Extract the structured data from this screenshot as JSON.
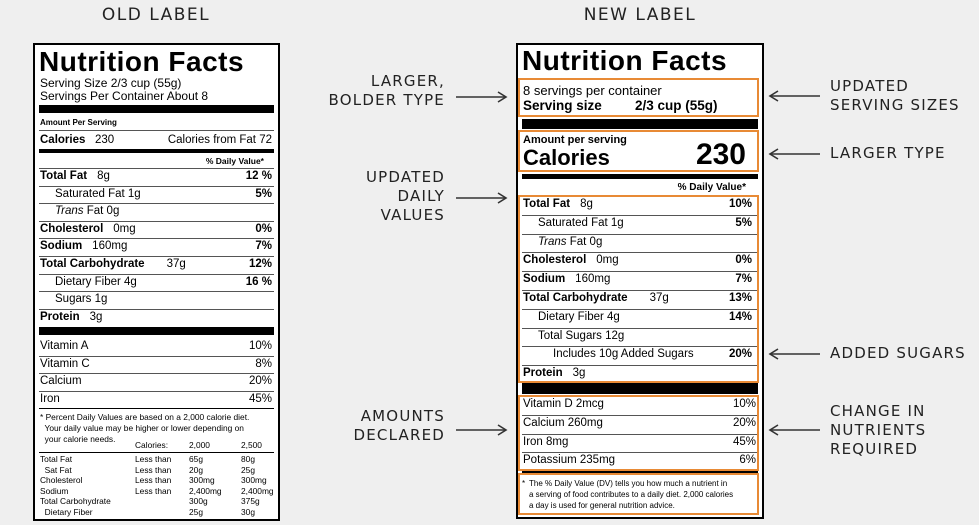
{
  "headings": {
    "old": "OLD LABEL",
    "new": "NEW LABEL"
  },
  "old_label": {
    "title": "Nutrition Facts",
    "serving_size": "Serving Size 2/3 cup (55g)",
    "servings_per_container": "Servings Per Container About 8",
    "amount_per_serving": "Amount Per Serving",
    "calories_label": "Calories",
    "calories_value": "230",
    "calories_from_fat": "Calories from Fat 72",
    "dv_header": "% Daily Value*",
    "nutrients": [
      {
        "label": "Total Fat",
        "amount": "8g",
        "dv": "12 %",
        "bold": true,
        "indent": 0
      },
      {
        "label": "Saturated Fat 1g",
        "amount": "",
        "dv": "5%",
        "bold": false,
        "indent": 1
      },
      {
        "label": "Trans",
        "label_suffix": " Fat 0g",
        "amount": "",
        "dv": "",
        "bold": false,
        "indent": 1,
        "italic": true
      },
      {
        "label": "Cholesterol",
        "amount": "0mg",
        "dv": "0%",
        "bold": true,
        "indent": 0
      },
      {
        "label": "Sodium",
        "amount": "160mg",
        "dv": "7%",
        "bold": true,
        "indent": 0
      },
      {
        "label": "Total Carbohydrate",
        "amount": "37g",
        "dv": "12%",
        "bold": true,
        "indent": 0
      },
      {
        "label": "Dietary Fiber 4g",
        "amount": "",
        "dv": "16 %",
        "bold": false,
        "indent": 1
      },
      {
        "label": "Sugars 1g",
        "amount": "",
        "dv": "",
        "bold": false,
        "indent": 1
      },
      {
        "label": "Protein",
        "amount": "3g",
        "dv": "",
        "bold": true,
        "indent": 0
      }
    ],
    "vitamins": [
      {
        "label": "Vitamin A",
        "dv": "10%"
      },
      {
        "label": "Vitamin C",
        "dv": "8%"
      },
      {
        "label": "Calcium",
        "dv": "20%"
      },
      {
        "label": "Iron",
        "dv": "45%"
      }
    ],
    "footnote": [
      "* Percent Daily Values are based on a 2,000 calorie diet.",
      "  Your daily value may be higher or lower depending on",
      "  your calorie needs."
    ],
    "table_header": [
      "Calories:",
      "2,000",
      "2,500"
    ],
    "table_rows": [
      [
        "Total Fat",
        "Less than",
        "65g",
        "80g"
      ],
      [
        "  Sat Fat",
        "Less than",
        "20g",
        "25g"
      ],
      [
        "Cholesterol",
        "Less than",
        "300mg",
        "300mg"
      ],
      [
        "Sodium",
        "Less than",
        "2,400mg",
        "2,400mg"
      ],
      [
        "Total Carbohydrate",
        "",
        "300g",
        "375g"
      ],
      [
        "  Dietary Fiber",
        "",
        "25g",
        "30g"
      ]
    ]
  },
  "new_label": {
    "title": "Nutrition Facts",
    "servings_per_container": "8 servings per container",
    "serving_size_label": "Serving size",
    "serving_size_value": "2/3 cup (55g)",
    "amount_per_serving": "Amount per serving",
    "calories_label": "Calories",
    "calories_value": "230",
    "dv_header": "% Daily Value*",
    "nutrients": [
      {
        "label": "Total Fat",
        "amount": "8g",
        "dv": "10%",
        "bold": true,
        "indent": 0
      },
      {
        "label": "Saturated Fat 1g",
        "amount": "",
        "dv": "5%",
        "bold": false,
        "indent": 1
      },
      {
        "label": "Trans",
        "label_suffix": " Fat 0g",
        "amount": "",
        "dv": "",
        "bold": false,
        "indent": 1,
        "italic": true
      },
      {
        "label": "Cholesterol",
        "amount": "0mg",
        "dv": "0%",
        "bold": true,
        "indent": 0
      },
      {
        "label": "Sodium",
        "amount": "160mg",
        "dv": "7%",
        "bold": true,
        "indent": 0
      },
      {
        "label": "Total Carbohydrate",
        "amount": "37g",
        "dv": "13%",
        "bold": true,
        "indent": 0
      },
      {
        "label": "Dietary Fiber 4g",
        "amount": "",
        "dv": "14%",
        "bold": false,
        "indent": 1
      },
      {
        "label": "Total Sugars 12g",
        "amount": "",
        "dv": "",
        "bold": false,
        "indent": 1
      },
      {
        "label": "Includes 10g Added Sugars",
        "amount": "",
        "dv": "20%",
        "bold": false,
        "indent": 2
      },
      {
        "label": "Protein",
        "amount": "3g",
        "dv": "",
        "bold": true,
        "indent": 0
      }
    ],
    "vitamins": [
      {
        "label": "Vitamin D 2mcg",
        "dv": "10%"
      },
      {
        "label": "Calcium 260mg",
        "dv": "20%"
      },
      {
        "label": "Iron 8mg",
        "dv": "45%"
      },
      {
        "label": "Potassium 235mg",
        "dv": "6%"
      }
    ],
    "footnote_star": "*",
    "footnote": [
      "The % Daily Value (DV) tells you how much a nutrient in",
      "a serving of food contributes to a daily diet. 2,000 calories",
      "a day is used for general nutrition advice."
    ]
  },
  "annotations": {
    "left": [
      [
        "LARGER,",
        "BOLDER TYPE"
      ],
      [
        "UPDATED",
        "DAILY",
        "VALUES"
      ],
      [
        "AMOUNTS",
        "DECLARED"
      ]
    ],
    "right": [
      [
        "UPDATED",
        "SERVING SIZES"
      ],
      [
        "LARGER TYPE"
      ],
      [
        "ADDED SUGARS"
      ],
      [
        "CHANGE IN",
        "NUTRIENTS",
        "REQUIRED"
      ]
    ]
  },
  "colors": {
    "highlight": "#e88a35",
    "background": "#efefef",
    "label_bg": "#ffffff"
  }
}
